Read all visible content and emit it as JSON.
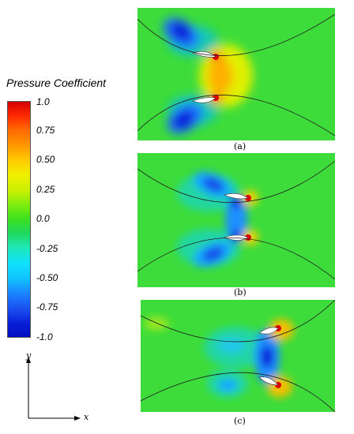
{
  "legend": {
    "title": "Pressure Coefficient",
    "ticks": [
      "1.0",
      "0.75",
      "0.50",
      "0.25",
      "0.0",
      "-0.25",
      "-0.50",
      "-0.75",
      "-1.0"
    ],
    "colors": [
      "#d40000",
      "#ff4a00",
      "#ff9a00",
      "#f0e000",
      "#a8f000",
      "#22d640",
      "#20e8b0",
      "#10d8ff",
      "#1a7aff",
      "#0a1ed8"
    ]
  },
  "panels": [
    {
      "caption": "(a)"
    },
    {
      "caption": "(b)"
    },
    {
      "caption": "(c)"
    }
  ],
  "axes": {
    "x_label": "x",
    "y_label": "y"
  }
}
